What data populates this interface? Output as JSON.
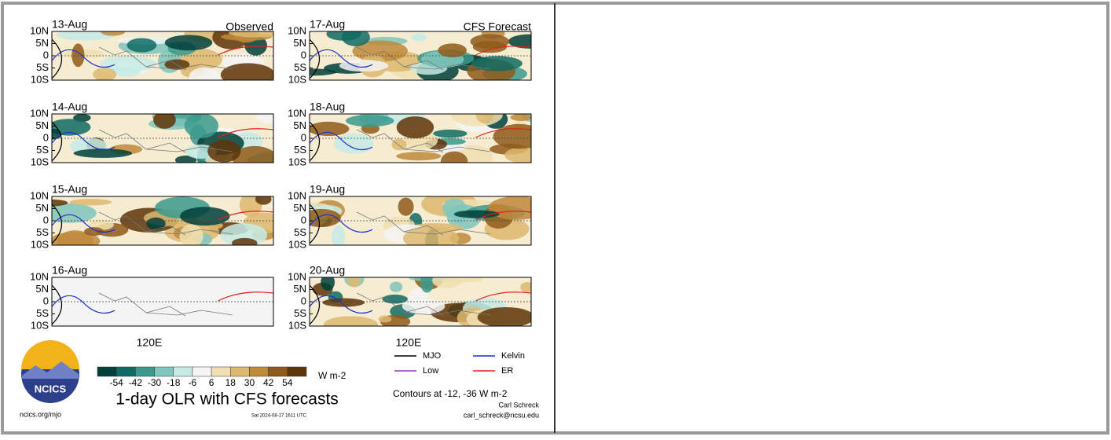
{
  "panels_observed": {
    "heading": "Observed",
    "dates": [
      "13-Aug",
      "14-Aug",
      "15-Aug",
      "16-Aug"
    ]
  },
  "panels_forecast": {
    "heading": "CFS Forecast",
    "dates": [
      "17-Aug",
      "18-Aug",
      "19-Aug",
      "20-Aug"
    ]
  },
  "lat_labels": [
    "10N",
    "5N",
    "0",
    "5S",
    "10S"
  ],
  "lon_label": "120E",
  "colorbar": {
    "ticks": [
      -54,
      -42,
      -30,
      -18,
      -6,
      6,
      18,
      30,
      42,
      54
    ],
    "colors": [
      "#00403a",
      "#0f6b63",
      "#3a9a8e",
      "#7fc6bc",
      "#c6ebe5",
      "#f5f5f5",
      "#f0dfb0",
      "#ddb870",
      "#bf8a3c",
      "#8f5a1a",
      "#5e3509"
    ],
    "unit": "W m-2"
  },
  "title": "1-day OLR with CFS forecasts",
  "legend": [
    {
      "name": "MJO",
      "color": "#000000"
    },
    {
      "name": "Kelvin",
      "color": "#1f2fd0"
    },
    {
      "name": "Low",
      "color": "#9a30c8"
    },
    {
      "name": "ER",
      "color": "#e02020"
    }
  ],
  "contour_note": "Contours at -12, -36 W m-2",
  "logo_text": "NCICS",
  "url": "ncics.org/mjo",
  "timestamp": "Sat 2024-08-17 1611 UTC",
  "author": "Carl Schreck",
  "email": "carl_schreck@ncsu.edu"
}
